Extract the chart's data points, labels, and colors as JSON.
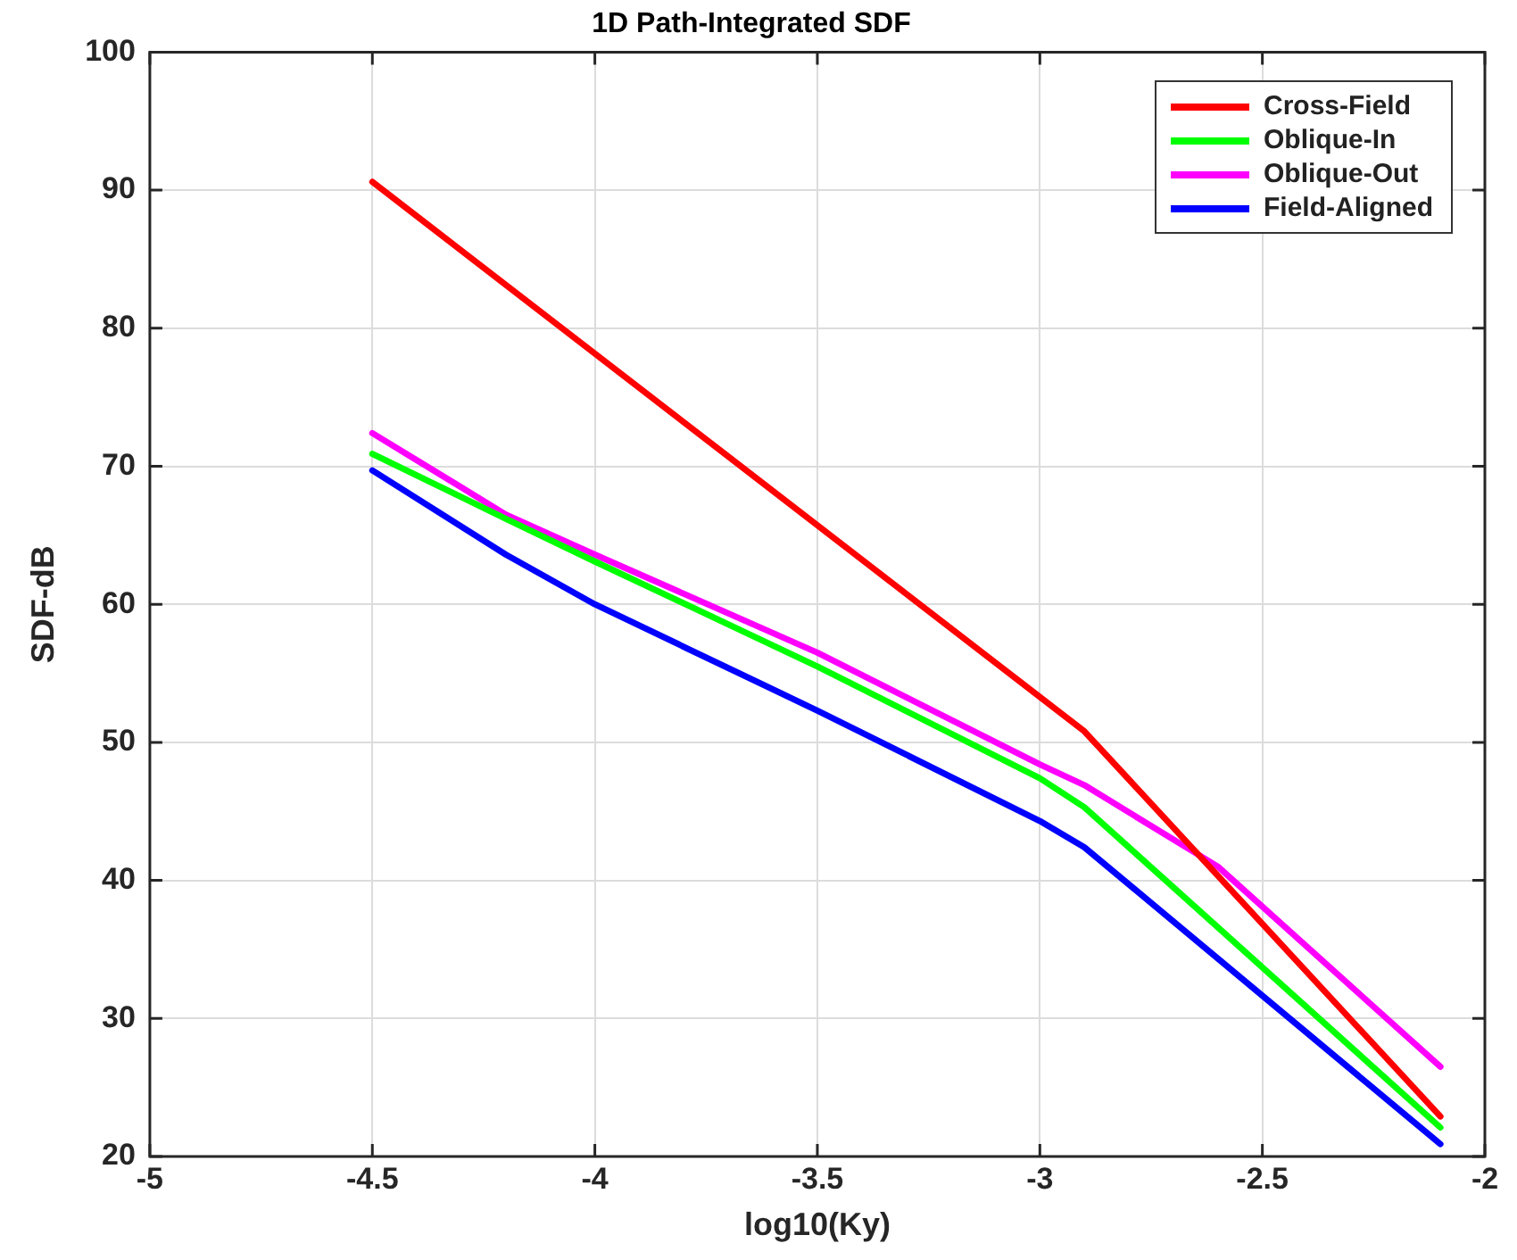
{
  "chart_data": {
    "type": "line",
    "title": "1D Path-Integrated SDF",
    "xlabel": "log10(Ky)",
    "ylabel": "SDF-dB",
    "xlim": [
      -5,
      -2
    ],
    "xticks": [
      -5,
      -4.5,
      -4,
      -3.5,
      -3,
      -2.5,
      -2
    ],
    "ylim": [
      20,
      100
    ],
    "yticks": [
      20,
      30,
      40,
      50,
      60,
      70,
      80,
      90,
      100
    ],
    "grid": true,
    "legend": "top right",
    "marker": "none",
    "line_style": "solid",
    "series": [
      {
        "name": "Cross-Field",
        "color": "#ff0000",
        "x": [
          -4.5,
          -2.9,
          -2.1
        ],
        "values": [
          90.6,
          50.8,
          22.9
        ]
      },
      {
        "name": "Oblique-In",
        "color": "#00ff00",
        "x": [
          -4.5,
          -4.2,
          -4,
          -3.5,
          -3,
          -2.9,
          -2.1
        ],
        "values": [
          70.9,
          66.2,
          63.1,
          55.5,
          47.4,
          45.3,
          22.1
        ]
      },
      {
        "name": "Oblique-Out",
        "color": "#ff00ff",
        "x": [
          -4.5,
          -4.2,
          -4,
          -3.5,
          -3,
          -2.9,
          -2.6,
          -2.1
        ],
        "values": [
          72.4,
          66.5,
          63.6,
          56.5,
          48.4,
          46.9,
          41,
          26.5
        ]
      },
      {
        "name": "Field-Aligned",
        "color": "#0000ff",
        "x": [
          -4.5,
          -4.2,
          -4,
          -3.5,
          -3,
          -2.9,
          -2.1
        ],
        "values": [
          69.7,
          63.6,
          60,
          52.3,
          44.3,
          42.4,
          20.9
        ]
      }
    ]
  }
}
